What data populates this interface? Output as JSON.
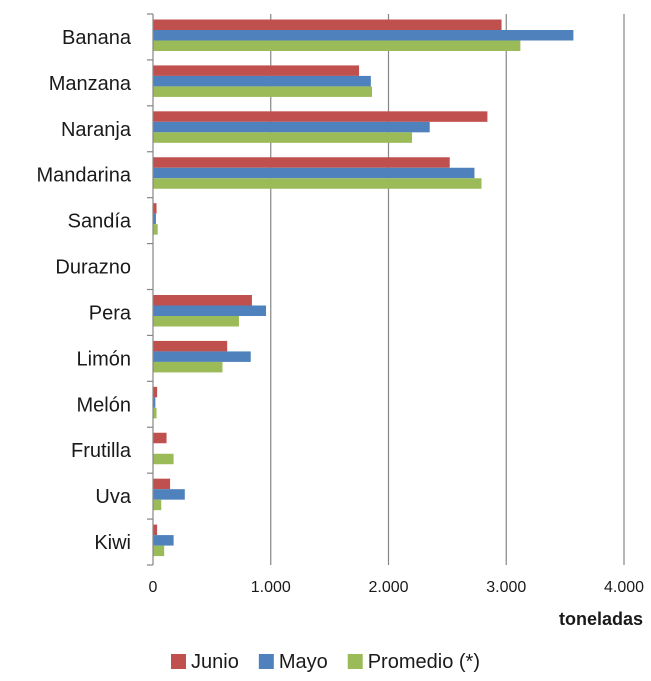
{
  "chart_data": {
    "type": "bar",
    "orientation": "horizontal",
    "xlabel": "toneladas",
    "xlim": [
      0,
      4000
    ],
    "x_ticks": [
      0,
      1000,
      2000,
      3000,
      4000
    ],
    "x_tick_labels": [
      "0",
      "1.000",
      "2.000",
      "3.000",
      "4.000"
    ],
    "grid": true,
    "legend_position": "bottom",
    "categories": [
      "Banana",
      "Manzana",
      "Naranja",
      "Mandarina",
      "Sandía",
      "Durazno",
      "Pera",
      "Limón",
      "Melón",
      "Frutilla",
      "Uva",
      "Kiwi"
    ],
    "series": [
      {
        "name": "Junio",
        "color": "#C0504D",
        "values": [
          2960,
          1750,
          2840,
          2520,
          30,
          0,
          840,
          630,
          35,
          115,
          145,
          35
        ]
      },
      {
        "name": "Mayo",
        "color": "#4F81BD",
        "values": [
          3570,
          1850,
          2350,
          2730,
          25,
          0,
          960,
          830,
          20,
          0,
          270,
          175
        ]
      },
      {
        "name": "Promedio (*)",
        "color": "#9BBB59",
        "values": [
          3120,
          1860,
          2200,
          2790,
          40,
          0,
          730,
          590,
          30,
          175,
          70,
          95
        ]
      }
    ]
  }
}
